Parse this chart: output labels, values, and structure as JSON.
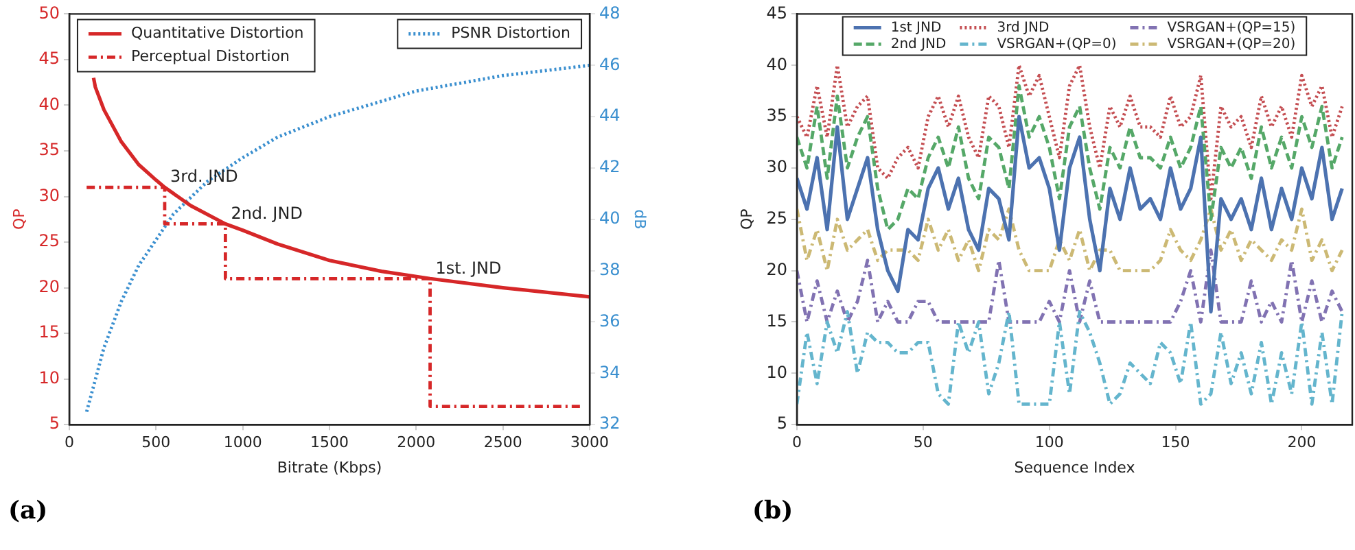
{
  "chart_data": [
    {
      "type": "line",
      "xlabel": "Bitrate (Kbps)",
      "ylabel": "QP",
      "y2label": "dB",
      "xlim": [
        0,
        3000
      ],
      "xticks": [
        0,
        500,
        1000,
        1500,
        2000,
        2500,
        3000
      ],
      "ylim": [
        5,
        50
      ],
      "yticks": [
        5,
        10,
        15,
        20,
        25,
        30,
        35,
        40,
        45,
        50
      ],
      "y2lim": [
        32,
        48
      ],
      "y2ticks": [
        32,
        34,
        36,
        38,
        40,
        42,
        44,
        46,
        48
      ],
      "grid": false,
      "legend": "top",
      "marker": "none",
      "series": [
        {
          "name": "Quantitative Distortion",
          "color": "#d62728",
          "line_style": "solid",
          "x": [
            140,
            150,
            200,
            300,
            400,
            500,
            550,
            700,
            900,
            1000,
            1200,
            1500,
            1800,
            2080,
            2500,
            3000
          ],
          "values": [
            43,
            42,
            39.5,
            36,
            33.5,
            31.8,
            31,
            29,
            27,
            26.3,
            24.8,
            23,
            21.8,
            21,
            20,
            19
          ]
        },
        {
          "name": "Perceptual Distortion",
          "color": "#d62728",
          "line_style": "dashdot",
          "x": [
            100,
            550,
            550,
            900,
            900,
            2080,
            2080,
            2950
          ],
          "values": [
            31,
            31,
            27,
            27,
            21,
            21,
            7,
            7
          ]
        },
        {
          "name": "PSNR Distortion",
          "color": "#3a8fcf",
          "line_style": "dotted",
          "axis": "y2",
          "x": [
            100,
            200,
            300,
            400,
            500,
            600,
            800,
            1000,
            1200,
            1500,
            2000,
            2500,
            3000
          ],
          "values": [
            32.5,
            35,
            36.8,
            38.2,
            39.2,
            40.2,
            41.5,
            42.4,
            43.2,
            44,
            45,
            45.6,
            46
          ]
        }
      ],
      "annotations": [
        {
          "text": "3rd. JND",
          "x": 550,
          "y": 31
        },
        {
          "text": "2nd. JND",
          "x": 900,
          "y": 27
        },
        {
          "text": "1st. JND",
          "x": 2080,
          "y": 21
        },
        "(a)"
      ]
    },
    {
      "type": "line",
      "xlabel": "Sequence Index",
      "ylabel": "QP",
      "xlim": [
        0,
        220
      ],
      "xticks": [
        0,
        50,
        100,
        150,
        200
      ],
      "ylim": [
        5,
        45
      ],
      "yticks": [
        5,
        10,
        15,
        20,
        25,
        30,
        35,
        40,
        45
      ],
      "grid": false,
      "legend": "top",
      "marker": "none",
      "x": [
        0,
        4,
        8,
        12,
        16,
        20,
        24,
        28,
        32,
        36,
        40,
        44,
        48,
        52,
        56,
        60,
        64,
        68,
        72,
        76,
        80,
        84,
        88,
        92,
        96,
        100,
        104,
        108,
        112,
        116,
        120,
        124,
        128,
        132,
        136,
        140,
        144,
        148,
        152,
        156,
        160,
        164,
        168,
        172,
        176,
        180,
        184,
        188,
        192,
        196,
        200,
        204,
        208,
        212,
        216
      ],
      "series": [
        {
          "name": "1st JND",
          "color": "#4c72b0",
          "line_style": "solid",
          "values": [
            29,
            26,
            31,
            24,
            34,
            25,
            28,
            31,
            24,
            20,
            18,
            24,
            23,
            28,
            30,
            26,
            29,
            24,
            22,
            28,
            27,
            23,
            35,
            30,
            31,
            28,
            22,
            30,
            33,
            25,
            20,
            28,
            25,
            30,
            26,
            27,
            25,
            30,
            26,
            28,
            33,
            16,
            27,
            25,
            27,
            24,
            29,
            24,
            28,
            25,
            30,
            27,
            32,
            25,
            28
          ]
        },
        {
          "name": "2nd JND",
          "color": "#55a868",
          "line_style": "dashed",
          "values": [
            33,
            30,
            36,
            29,
            37,
            30,
            33,
            35,
            28,
            24,
            25,
            28,
            27,
            31,
            33,
            30,
            34,
            29,
            27,
            33,
            32,
            28,
            38,
            33,
            35,
            32,
            27,
            34,
            36,
            30,
            26,
            32,
            30,
            34,
            31,
            31,
            30,
            33,
            30,
            32,
            36,
            25,
            32,
            30,
            32,
            29,
            34,
            30,
            33,
            30,
            35,
            32,
            36,
            30,
            33
          ]
        },
        {
          "name": "3rd JND",
          "color": "#c44e52",
          "line_style": "dotted",
          "values": [
            35,
            33,
            38,
            33,
            40,
            34,
            36,
            37,
            30,
            29,
            31,
            32,
            30,
            35,
            37,
            34,
            37,
            33,
            31,
            37,
            36,
            32,
            40,
            37,
            39,
            35,
            31,
            38,
            40,
            34,
            30,
            36,
            34,
            37,
            34,
            34,
            33,
            37,
            34,
            35,
            39,
            27,
            36,
            34,
            35,
            32,
            37,
            34,
            36,
            33,
            39,
            36,
            38,
            33,
            36
          ]
        },
        {
          "name": "VSRGAN+(QP=0)",
          "color": "#64b5cd",
          "line_style": "dashdot",
          "values": [
            7,
            14,
            9,
            15,
            12,
            16,
            10,
            14,
            13,
            13,
            12,
            12,
            13,
            13,
            8,
            7,
            15,
            12,
            15,
            8,
            11,
            16,
            7,
            7,
            7,
            7,
            15,
            8,
            16,
            14,
            11,
            7,
            8,
            11,
            10,
            9,
            13,
            12,
            9,
            15,
            7,
            8,
            14,
            9,
            12,
            8,
            13,
            7,
            12,
            8,
            15,
            7,
            14,
            7,
            16
          ]
        },
        {
          "name": "VSRGAN+(QP=15)",
          "color": "#8172b2",
          "line_style": "dashdot",
          "values": [
            20,
            15,
            19,
            15,
            18,
            15,
            17,
            21,
            15,
            17,
            15,
            15,
            17,
            17,
            15,
            15,
            15,
            15,
            15,
            15,
            21,
            15,
            15,
            15,
            15,
            17,
            15,
            20,
            15,
            19,
            15,
            15,
            15,
            15,
            15,
            15,
            15,
            15,
            17,
            20,
            15,
            22,
            15,
            15,
            15,
            19,
            15,
            17,
            15,
            21,
            15,
            19,
            15,
            18,
            16
          ]
        },
        {
          "name": "VSRGAN+(QP=20)",
          "color": "#ccb974",
          "line_style": "dashdot",
          "values": [
            26,
            21,
            24,
            20,
            25,
            22,
            23,
            24,
            21,
            22,
            22,
            22,
            21,
            25,
            22,
            24,
            21,
            23,
            20,
            24,
            23,
            26,
            22,
            20,
            20,
            20,
            23,
            21,
            24,
            20,
            22,
            22,
            20,
            20,
            20,
            20,
            21,
            24,
            22,
            21,
            23,
            26,
            22,
            24,
            21,
            23,
            22,
            21,
            23,
            22,
            26,
            21,
            23,
            20,
            22
          ]
        }
      ],
      "annotations": [
        "(b)"
      ]
    }
  ]
}
